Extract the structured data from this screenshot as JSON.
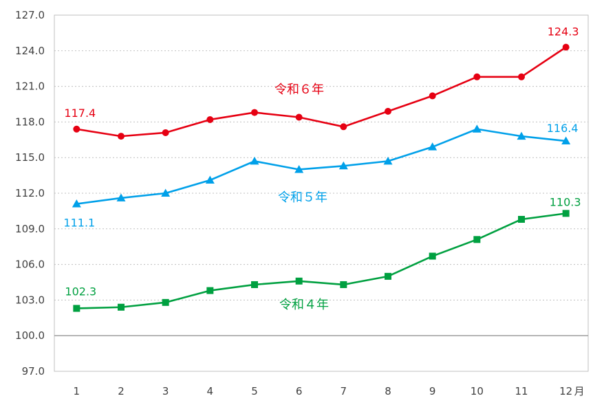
{
  "chart_data": {
    "type": "line",
    "x": [
      1,
      2,
      3,
      4,
      5,
      6,
      7,
      8,
      9,
      10,
      11,
      12
    ],
    "x_unit": "月",
    "ylim": [
      97.0,
      127.0
    ],
    "yticks": [
      "97.0",
      "100.0",
      "103.0",
      "106.0",
      "109.0",
      "112.0",
      "115.0",
      "118.0",
      "121.0",
      "124.0",
      "127.0"
    ],
    "reference_line": 100.0,
    "grid": "dotted horizontal",
    "series": [
      {
        "name": "令和６年",
        "color": "#e60012",
        "marker": "circle",
        "values": [
          117.4,
          116.8,
          117.1,
          118.2,
          118.8,
          118.4,
          117.6,
          118.9,
          120.2,
          121.8,
          121.8,
          124.3
        ],
        "labels": [
          {
            "index": 0,
            "text": "117.4"
          },
          {
            "index": 11,
            "text": "124.3"
          }
        ]
      },
      {
        "name": "令和５年",
        "color": "#00a0e9",
        "marker": "triangle",
        "values": [
          111.1,
          111.6,
          112.0,
          113.1,
          114.7,
          114.0,
          114.3,
          114.7,
          115.9,
          117.4,
          116.8,
          116.4
        ],
        "labels": [
          {
            "index": 0,
            "text": "111.1"
          },
          {
            "index": 11,
            "text": "116.4"
          }
        ]
      },
      {
        "name": "令和４年",
        "color": "#00a040",
        "marker": "square",
        "values": [
          102.3,
          102.4,
          102.8,
          103.8,
          104.3,
          104.6,
          104.3,
          105.0,
          106.7,
          108.1,
          109.8,
          110.3
        ],
        "labels": [
          {
            "index": 0,
            "text": "102.3"
          },
          {
            "index": 11,
            "text": "110.3"
          }
        ]
      }
    ]
  }
}
